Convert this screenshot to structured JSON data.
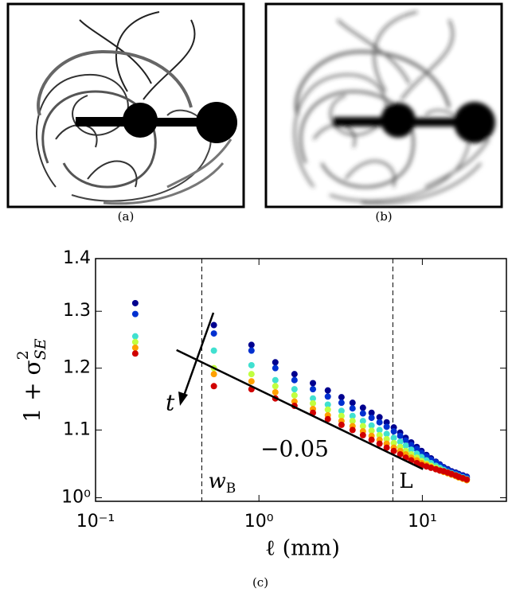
{
  "panels": {
    "a": "(a)",
    "b": "(b)",
    "c": "(c)"
  },
  "chart_data": {
    "type": "scatter",
    "xlabel": "ℓ (mm)",
    "ylabel": {
      "main": "1 + σ",
      "sup": "2",
      "sub": "SE"
    },
    "log_x": true,
    "log_y": true,
    "xlim": [
      0.1,
      32.7
    ],
    "ylim": [
      0.995,
      1.4
    ],
    "xticks": [
      {
        "value": 0.1,
        "label": "10⁻¹"
      },
      {
        "value": 1,
        "label": "10⁰"
      },
      {
        "value": 10,
        "label": "10¹"
      }
    ],
    "yticks": [
      {
        "value": 1,
        "label": "10⁰"
      },
      1.1,
      1.2,
      1.3,
      1.4
    ],
    "x": [
      0.175,
      0.53,
      0.9,
      1.26,
      1.65,
      2.14,
      2.64,
      3.2,
      3.74,
      4.33,
      4.89,
      5.47,
      6.05,
      6.69,
      7.32,
      7.91,
      8.55,
      9.25,
      9.89,
      10.6,
      11.3,
      12.1,
      12.8,
      13.5,
      14.3,
      15.1,
      16.0,
      16.7,
      17.7,
      18.7
    ],
    "series": [
      {
        "color": "#00008f",
        "values": [
          1.315,
          1.275,
          1.24,
          1.21,
          1.19,
          1.175,
          1.163,
          1.152,
          1.143,
          1.135,
          1.127,
          1.12,
          1.112,
          1.104,
          1.096,
          1.088,
          1.081,
          1.074,
          1.068,
          1.062,
          1.057,
          1.052,
          1.048,
          1.044,
          1.041,
          1.038,
          1.036,
          1.034,
          1.032,
          1.03
        ]
      },
      {
        "color": "#0030d0",
        "values": [
          1.295,
          1.26,
          1.23,
          1.2,
          1.18,
          1.165,
          1.153,
          1.143,
          1.134,
          1.126,
          1.119,
          1.112,
          1.105,
          1.098,
          1.091,
          1.084,
          1.077,
          1.071,
          1.065,
          1.06,
          1.055,
          1.051,
          1.047,
          1.043,
          1.04,
          1.037,
          1.035,
          1.033,
          1.031,
          1.029
        ]
      },
      {
        "color": "#40e0d0",
        "values": [
          1.255,
          1.23,
          1.205,
          1.18,
          1.165,
          1.15,
          1.14,
          1.13,
          1.122,
          1.114,
          1.107,
          1.1,
          1.094,
          1.088,
          1.082,
          1.076,
          1.07,
          1.064,
          1.059,
          1.054,
          1.05,
          1.046,
          1.043,
          1.04,
          1.037,
          1.035,
          1.033,
          1.031,
          1.029,
          1.027
        ]
      },
      {
        "color": "#c0ff40",
        "values": [
          1.245,
          1.2,
          1.19,
          1.17,
          1.155,
          1.142,
          1.132,
          1.122,
          1.114,
          1.106,
          1.099,
          1.092,
          1.086,
          1.08,
          1.074,
          1.068,
          1.063,
          1.058,
          1.053,
          1.049,
          1.046,
          1.043,
          1.04,
          1.037,
          1.035,
          1.033,
          1.031,
          1.029,
          1.027,
          1.025
        ]
      },
      {
        "color": "#ffa000",
        "values": [
          1.235,
          1.19,
          1.178,
          1.16,
          1.145,
          1.133,
          1.123,
          1.114,
          1.106,
          1.098,
          1.091,
          1.085,
          1.079,
          1.073,
          1.068,
          1.063,
          1.058,
          1.054,
          1.05,
          1.047,
          1.044,
          1.041,
          1.039,
          1.037,
          1.035,
          1.033,
          1.031,
          1.029,
          1.027,
          1.025
        ]
      },
      {
        "color": "#d00000",
        "values": [
          1.225,
          1.17,
          1.165,
          1.15,
          1.138,
          1.127,
          1.117,
          1.108,
          1.1,
          1.092,
          1.085,
          1.079,
          1.073,
          1.068,
          1.063,
          1.058,
          1.054,
          1.05,
          1.047,
          1.045,
          1.043,
          1.041,
          1.039,
          1.038,
          1.036,
          1.034,
          1.032,
          1.03,
          1.028,
          1.026
        ]
      }
    ],
    "fit_line": {
      "x": [
        0.313,
        10.1
      ],
      "y": [
        1.231,
        1.041
      ],
      "label": "−0.05"
    },
    "arrow_label": "t",
    "vlines": [
      {
        "x": 0.447,
        "label": {
          "main": "w",
          "sub": "B"
        }
      },
      {
        "x": 6.6,
        "label": "L"
      }
    ]
  }
}
